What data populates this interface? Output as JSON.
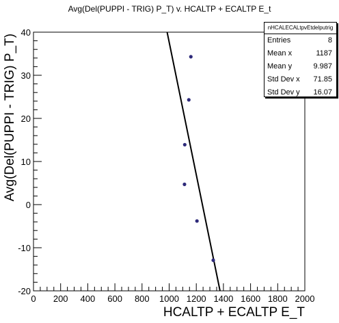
{
  "page": {
    "title": "Avg(Del(PUPPI - TRIG) P_T) v. HCALTP + ECALTP E_t"
  },
  "stats": {
    "name": "nHCALECALtpvEtdelputrig",
    "rows": [
      {
        "label": "Entries",
        "value": "8"
      },
      {
        "label": "Mean x",
        "value": "1187"
      },
      {
        "label": "Mean y",
        "value": "9.987"
      },
      {
        "label": "Std Dev x",
        "value": "71.85"
      },
      {
        "label": "Std Dev y",
        "value": "16.07"
      }
    ]
  },
  "chart_data": {
    "type": "scatter",
    "xlabel": "HCALTP + ECALTP E_T",
    "ylabel": "Avg(Del(PUPPI - TRIG) P_T)",
    "xlim": [
      0,
      2000
    ],
    "ylim": [
      -20,
      40
    ],
    "xticks": [
      0,
      200,
      400,
      600,
      800,
      1000,
      1200,
      1400,
      1600,
      1800,
      2000
    ],
    "yticks": [
      -20,
      -10,
      0,
      10,
      20,
      30,
      40
    ],
    "grid": false,
    "series": [
      {
        "points": [
          {
            "x": 1160,
            "y": 34.3
          },
          {
            "x": 1145,
            "y": 24.3
          },
          {
            "x": 1115,
            "y": 13.9
          },
          {
            "x": 1113,
            "y": 4.7
          },
          {
            "x": 1205,
            "y": -3.8
          },
          {
            "x": 1325,
            "y": -12.9
          }
        ],
        "color": "#2e2a7a"
      }
    ],
    "fit_line": {
      "x1": 985,
      "y1": 40,
      "x2": 1375,
      "y2": -20,
      "color": "#000000"
    }
  }
}
